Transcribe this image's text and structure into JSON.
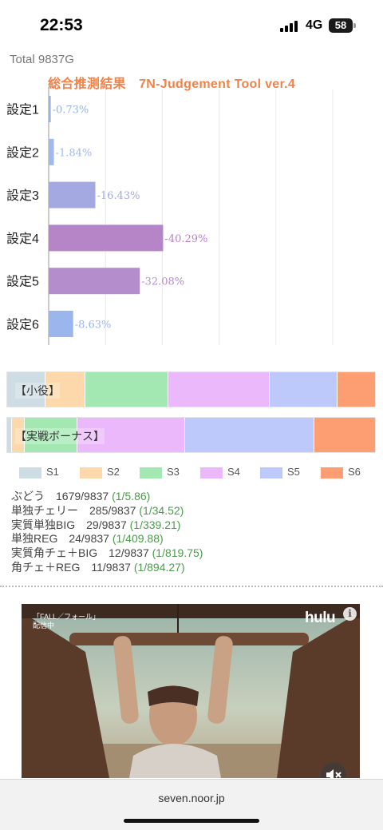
{
  "status_bar": {
    "time": "22:53",
    "network": "4G",
    "battery": "58"
  },
  "total_label": "Total 9837G",
  "chart_title": "総合推測結果　7N-Judgement Tool ver.4",
  "chart_data": {
    "type": "bar",
    "orientation": "horizontal",
    "categories": [
      "設定1",
      "設定2",
      "設定3",
      "設定4",
      "設定5",
      "設定6"
    ],
    "values": [
      0.73,
      1.84,
      16.43,
      40.29,
      32.08,
      8.63
    ],
    "value_labels": [
      "0.73%",
      "1.84%",
      "16.43%",
      "40.29%",
      "32.08%",
      "8.63%"
    ],
    "colors": [
      "#98b2e6",
      "#a0baec",
      "#a4a9e2",
      "#b585c8",
      "#b48dcc",
      "#9ab6ec"
    ],
    "xlim": [
      0,
      100
    ],
    "grid": true
  },
  "stacked_bars": [
    {
      "label": "【小役】",
      "segments": [
        {
          "key": "S1",
          "share": 10.3
        },
        {
          "key": "S2",
          "share": 10.7
        },
        {
          "key": "S3",
          "share": 22.5
        },
        {
          "key": "S4",
          "share": 27.6
        },
        {
          "key": "S5",
          "share": 18.4
        },
        {
          "key": "S6",
          "share": 10.5
        }
      ]
    },
    {
      "label": "【実戦ボーナス】",
      "segments": [
        {
          "key": "S1",
          "share": 1.1
        },
        {
          "key": "S2",
          "share": 3.5
        },
        {
          "key": "S3",
          "share": 14.3
        },
        {
          "key": "S4",
          "share": 29.2
        },
        {
          "key": "S5",
          "share": 35.1
        },
        {
          "key": "S6",
          "share": 16.8
        }
      ]
    }
  ],
  "legend": {
    "items": [
      {
        "key": "S1",
        "label": "S1",
        "color": "#cddde3"
      },
      {
        "key": "S2",
        "label": "S2",
        "color": "#fdd8aa"
      },
      {
        "key": "S3",
        "label": "S3",
        "color": "#a3e8b2"
      },
      {
        "key": "S4",
        "label": "S4",
        "color": "#ebb8fb"
      },
      {
        "key": "S5",
        "label": "S5",
        "color": "#bdc9fa"
      },
      {
        "key": "S6",
        "label": "S6",
        "color": "#fd9e72"
      }
    ]
  },
  "stats": [
    {
      "name": "ぶどう",
      "count": "1679/9837",
      "ratio": "(1/5.86)"
    },
    {
      "name": "単独チェリー",
      "count": "285/9837",
      "ratio": "(1/34.52)"
    },
    {
      "name": "実質単独BIG",
      "count": "29/9837",
      "ratio": "(1/339.21)"
    },
    {
      "name": "単独REG",
      "count": "24/9837",
      "ratio": "(1/409.88)"
    },
    {
      "name": "実質角チェ＋BIG",
      "count": "12/9837",
      "ratio": "(1/819.75)"
    },
    {
      "name": "角チェ＋REG",
      "count": "11/9837",
      "ratio": "(1/894.27)"
    }
  ],
  "ad": {
    "caption_line1": "「FALL／フォール」",
    "caption_line2": "配信中",
    "logo": "hulu",
    "info_icon": "info-icon",
    "mute_icon": "speaker-muted-icon"
  },
  "browser": {
    "url": "seven.noor.jp"
  }
}
